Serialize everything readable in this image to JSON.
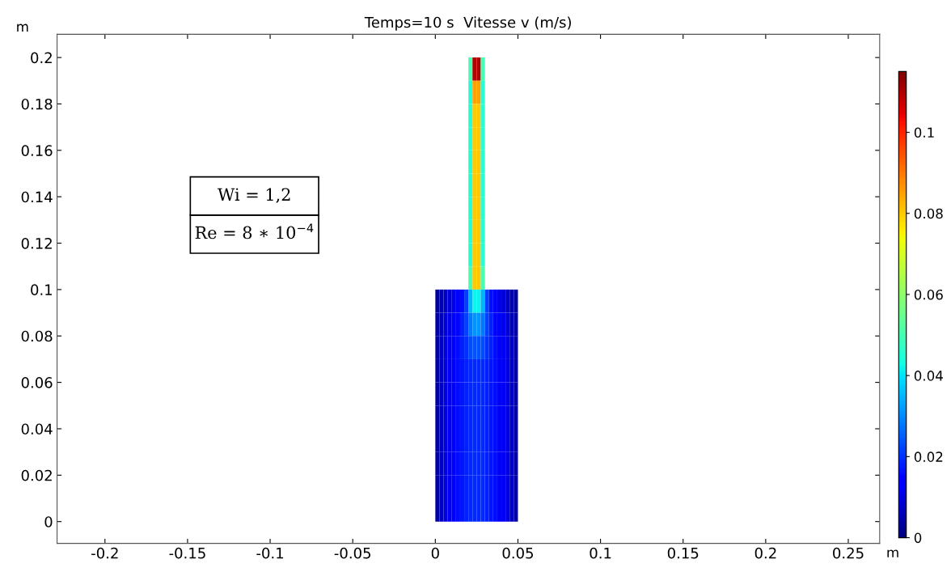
{
  "chart_data": {
    "type": "heatmap",
    "title": "Temps=10 s  Vitesse v (m/s)",
    "xlabel": "m",
    "ylabel": "m",
    "annotations": [
      "Wi = 1,2",
      "Re = 8 ∗ 10$^{−4}$"
    ],
    "x": [
      0.00125,
      0.00375,
      0.00625,
      0.00875,
      0.01125,
      0.01375,
      0.01625,
      0.01875,
      0.02125,
      0.02375,
      0.02625,
      0.02875,
      0.03125,
      0.03375,
      0.03625,
      0.03875,
      0.04125,
      0.04375,
      0.04625,
      0.04875
    ],
    "y": [
      0.195,
      0.185,
      0.175,
      0.165,
      0.155,
      0.145,
      0.135,
      0.125,
      0.115,
      0.105,
      0.095,
      0.085,
      0.075,
      0.065,
      0.055,
      0.045,
      0.035,
      0.025,
      0.015,
      0.005
    ],
    "cells": [
      [
        null,
        null,
        null,
        null,
        null,
        null,
        null,
        null,
        0.05,
        0.11,
        0.11,
        0.05,
        null,
        null,
        null,
        null,
        null,
        null,
        null,
        null
      ],
      [
        null,
        null,
        null,
        null,
        null,
        null,
        null,
        null,
        0.045,
        0.085,
        0.085,
        0.045,
        null,
        null,
        null,
        null,
        null,
        null,
        null,
        null
      ],
      [
        null,
        null,
        null,
        null,
        null,
        null,
        null,
        null,
        0.045,
        0.08,
        0.08,
        0.045,
        null,
        null,
        null,
        null,
        null,
        null,
        null,
        null
      ],
      [
        null,
        null,
        null,
        null,
        null,
        null,
        null,
        null,
        0.045,
        0.08,
        0.08,
        0.045,
        null,
        null,
        null,
        null,
        null,
        null,
        null,
        null
      ],
      [
        null,
        null,
        null,
        null,
        null,
        null,
        null,
        null,
        0.045,
        0.08,
        0.08,
        0.045,
        null,
        null,
        null,
        null,
        null,
        null,
        null,
        null
      ],
      [
        null,
        null,
        null,
        null,
        null,
        null,
        null,
        null,
        0.045,
        0.08,
        0.08,
        0.045,
        null,
        null,
        null,
        null,
        null,
        null,
        null,
        null
      ],
      [
        null,
        null,
        null,
        null,
        null,
        null,
        null,
        null,
        0.045,
        0.08,
        0.08,
        0.045,
        null,
        null,
        null,
        null,
        null,
        null,
        null,
        null
      ],
      [
        null,
        null,
        null,
        null,
        null,
        null,
        null,
        null,
        0.045,
        0.08,
        0.08,
        0.045,
        null,
        null,
        null,
        null,
        null,
        null,
        null,
        null
      ],
      [
        null,
        null,
        null,
        null,
        null,
        null,
        null,
        null,
        0.045,
        0.08,
        0.08,
        0.045,
        null,
        null,
        null,
        null,
        null,
        null,
        null,
        null
      ],
      [
        null,
        null,
        null,
        null,
        null,
        null,
        null,
        null,
        0.05,
        0.08,
        0.08,
        0.05,
        null,
        null,
        null,
        null,
        null,
        null,
        null,
        null
      ],
      [
        0.003,
        0.005,
        0.007,
        0.009,
        0.011,
        0.013,
        0.016,
        0.022,
        0.035,
        0.042,
        0.042,
        0.035,
        0.022,
        0.016,
        0.013,
        0.011,
        0.009,
        0.007,
        0.005,
        0.003
      ],
      [
        0.004,
        0.006,
        0.009,
        0.011,
        0.013,
        0.015,
        0.018,
        0.022,
        0.028,
        0.031,
        0.031,
        0.028,
        0.022,
        0.018,
        0.015,
        0.013,
        0.011,
        0.009,
        0.006,
        0.004
      ],
      [
        0.004,
        0.007,
        0.01,
        0.012,
        0.014,
        0.016,
        0.018,
        0.02,
        0.023,
        0.024,
        0.024,
        0.023,
        0.02,
        0.018,
        0.016,
        0.014,
        0.012,
        0.01,
        0.007,
        0.004
      ],
      [
        0.004,
        0.007,
        0.01,
        0.012,
        0.014,
        0.016,
        0.017,
        0.018,
        0.019,
        0.019,
        0.019,
        0.019,
        0.018,
        0.017,
        0.016,
        0.014,
        0.012,
        0.01,
        0.007,
        0.004
      ],
      [
        0.004,
        0.007,
        0.01,
        0.012,
        0.014,
        0.016,
        0.017,
        0.018,
        0.019,
        0.019,
        0.019,
        0.019,
        0.018,
        0.017,
        0.016,
        0.014,
        0.012,
        0.01,
        0.007,
        0.004
      ],
      [
        0.004,
        0.007,
        0.01,
        0.012,
        0.014,
        0.016,
        0.017,
        0.018,
        0.019,
        0.019,
        0.019,
        0.019,
        0.018,
        0.017,
        0.016,
        0.014,
        0.012,
        0.01,
        0.007,
        0.004
      ],
      [
        0.004,
        0.007,
        0.01,
        0.012,
        0.014,
        0.016,
        0.017,
        0.018,
        0.019,
        0.019,
        0.019,
        0.019,
        0.018,
        0.017,
        0.016,
        0.014,
        0.012,
        0.01,
        0.007,
        0.004
      ],
      [
        0.004,
        0.007,
        0.01,
        0.012,
        0.014,
        0.016,
        0.017,
        0.018,
        0.019,
        0.019,
        0.019,
        0.019,
        0.018,
        0.017,
        0.016,
        0.014,
        0.012,
        0.01,
        0.007,
        0.004
      ],
      [
        0.004,
        0.007,
        0.01,
        0.012,
        0.014,
        0.016,
        0.017,
        0.018,
        0.019,
        0.019,
        0.019,
        0.019,
        0.018,
        0.017,
        0.016,
        0.014,
        0.012,
        0.01,
        0.007,
        0.004
      ],
      [
        0.004,
        0.007,
        0.01,
        0.012,
        0.014,
        0.016,
        0.017,
        0.018,
        0.019,
        0.019,
        0.019,
        0.019,
        0.018,
        0.017,
        0.016,
        0.014,
        0.012,
        0.01,
        0.007,
        0.004
      ]
    ],
    "xlim": [
      -0.229,
      0.269
    ],
    "ylim": [
      -0.0094,
      0.21
    ],
    "xticks": [
      -0.2,
      -0.15,
      -0.1,
      -0.05,
      0,
      0.05,
      0.1,
      0.15,
      0.2,
      0.25
    ],
    "yticks": [
      0,
      0.02,
      0.04,
      0.06,
      0.08,
      0.1,
      0.12,
      0.14,
      0.16,
      0.18,
      0.2
    ],
    "clim": [
      0,
      0.115
    ],
    "cticks": [
      0,
      0.02,
      0.04,
      0.06,
      0.08,
      0.1
    ],
    "grid": false
  }
}
